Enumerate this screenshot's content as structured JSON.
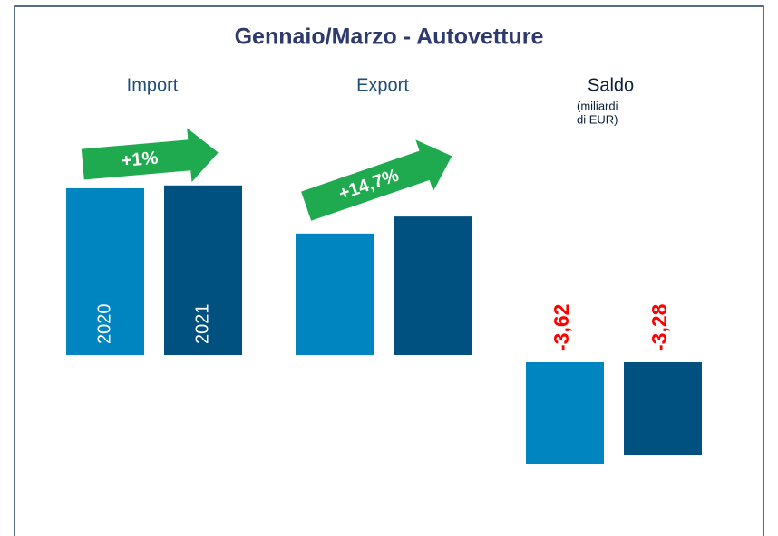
{
  "chart_data": {
    "type": "bar",
    "title": "Gennaio/Marzo - Autovetture",
    "categories": [
      "Import",
      "Export",
      "Saldo"
    ],
    "saldo_note": [
      "(miliardi",
      "di EUR)"
    ],
    "series": [
      {
        "name": "2020",
        "color": "#0085c0",
        "values": [
          5.9,
          4.3,
          -3.62
        ],
        "value_labels": [
          null,
          null,
          "-3,62"
        ]
      },
      {
        "name": "2021",
        "color": "#00517f",
        "values": [
          6.0,
          4.9,
          -3.28
        ],
        "value_labels": [
          null,
          null,
          "-3,28"
        ]
      }
    ],
    "annotations": [
      {
        "text": "+1%",
        "color": "#1faa4f"
      },
      {
        "text": "+14,7%",
        "color": "#1faa4f"
      }
    ],
    "value_label_color": "#ff0000"
  }
}
